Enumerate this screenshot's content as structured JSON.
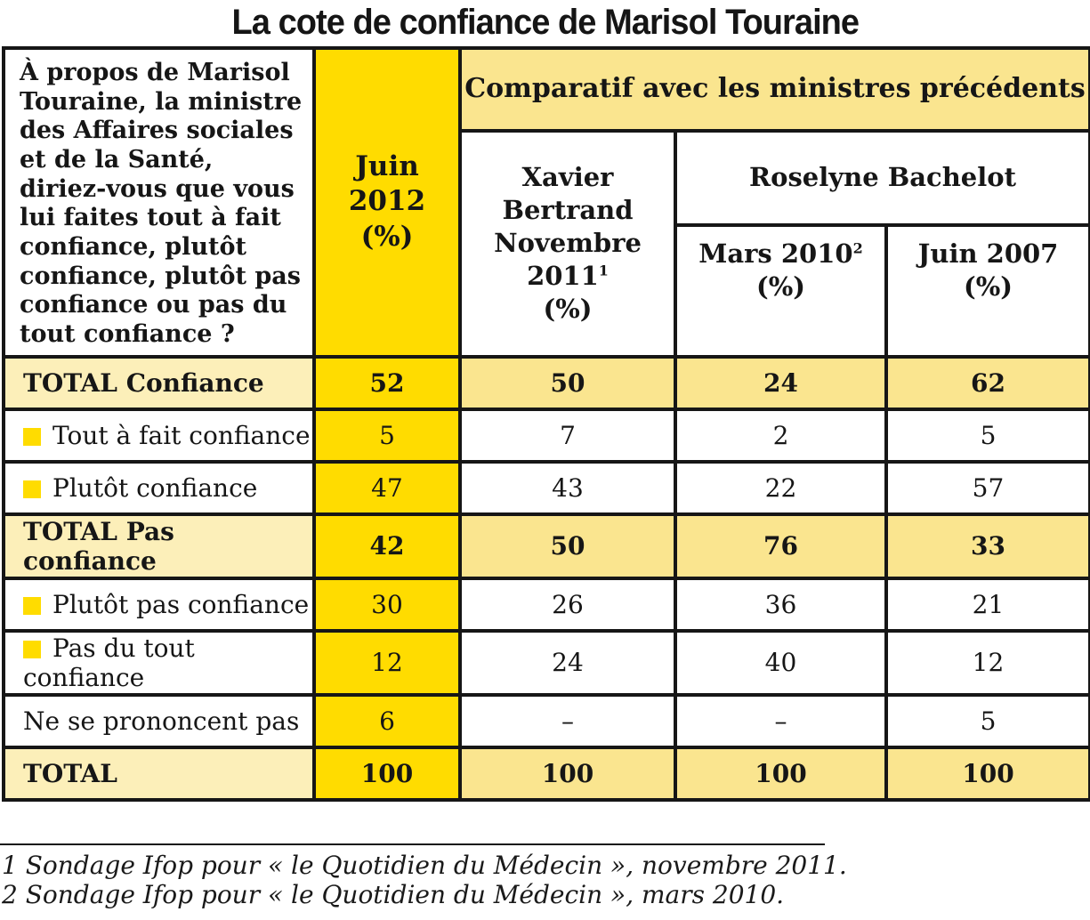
{
  "title": "La cote de confiance de Marisol Touraine",
  "colors": {
    "bright_yellow": "#FFDC00",
    "pale_yellow": "#FAE58F",
    "cream": "#FCEFB9",
    "border_black": "#161616"
  },
  "table": {
    "question": "À propos de Marisol Touraine, la ministre des Affaires sociales et de la Santé, diriez-vous que vous lui faites tout à fait confiance, plutôt confiance, plutôt pas confiance ou pas du tout confiance ?",
    "col_juin2012": {
      "line1": "Juin 2012",
      "line2": "(%)"
    },
    "comparatif_header": "Comparatif avec les ministres précédents",
    "col_bertrand": {
      "line1": "Xavier Bertrand",
      "line2": "Novembre 2011",
      "sup": "1",
      "line3": "(%)"
    },
    "bachelot_header": "Roselyne Bachelot",
    "col_mars2010": {
      "line1": "Mars 2010",
      "sup": "2",
      "line2": "(%)"
    },
    "col_juin2007": {
      "line1": "Juin 2007",
      "line2": "(%)"
    },
    "rows": [
      {
        "label": "TOTAL Confiance",
        "values": [
          "52",
          "50",
          "24",
          "62"
        ]
      },
      {
        "label": "Tout à fait confiance",
        "values": [
          "5",
          "7",
          "2",
          "5"
        ]
      },
      {
        "label": "Plutôt confiance",
        "values": [
          "47",
          "43",
          "22",
          "57"
        ]
      },
      {
        "label": "TOTAL Pas confiance",
        "values": [
          "42",
          "50",
          "76",
          "33"
        ]
      },
      {
        "label": "Plutôt pas confiance",
        "values": [
          "30",
          "26",
          "36",
          "21"
        ]
      },
      {
        "label": "Pas du tout confiance",
        "values": [
          "12",
          "24",
          "40",
          "12"
        ]
      },
      {
        "label": "Ne se prononcent pas",
        "values": [
          "6",
          "–",
          "–",
          "5"
        ]
      },
      {
        "label": "TOTAL",
        "values": [
          "100",
          "100",
          "100",
          "100"
        ]
      }
    ]
  },
  "footnotes": [
    "1 Sondage Ifop pour « le Quotidien du Médecin », novembre 2011.",
    "2 Sondage Ifop pour « le Quotidien du Médecin », mars 2010."
  ],
  "chart_data": {
    "type": "table",
    "title": "La cote de confiance de Marisol Touraine",
    "columns": [
      "Juin 2012 (%)",
      "Xavier Bertrand Novembre 2011 (%)",
      "Roselyne Bachelot Mars 2010 (%)",
      "Roselyne Bachelot Juin 2007 (%)"
    ],
    "categories": [
      "TOTAL Confiance",
      "Tout à fait confiance",
      "Plutôt confiance",
      "TOTAL Pas confiance",
      "Plutôt pas confiance",
      "Pas du tout confiance",
      "Ne se prononcent pas",
      "TOTAL"
    ],
    "series": [
      {
        "name": "Juin 2012 (%)",
        "values": [
          52,
          5,
          47,
          42,
          30,
          12,
          6,
          100
        ]
      },
      {
        "name": "Xavier Bertrand Novembre 2011 (%)",
        "values": [
          50,
          7,
          43,
          50,
          26,
          24,
          null,
          100
        ]
      },
      {
        "name": "Roselyne Bachelot Mars 2010 (%)",
        "values": [
          24,
          2,
          22,
          76,
          36,
          40,
          null,
          100
        ]
      },
      {
        "name": "Roselyne Bachelot Juin 2007 (%)",
        "values": [
          62,
          5,
          57,
          33,
          21,
          12,
          5,
          100
        ]
      }
    ]
  }
}
